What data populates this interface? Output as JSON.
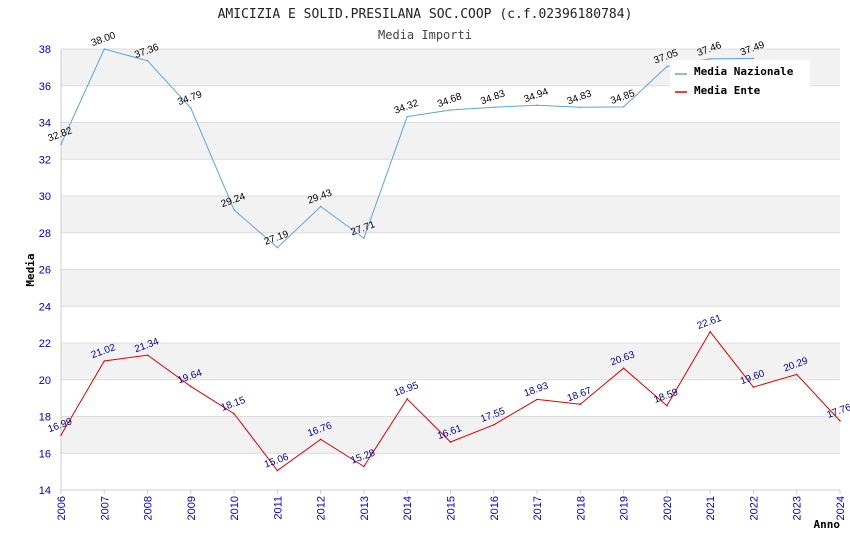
{
  "chart_data": {
    "type": "line",
    "title": "AMICIZIA E SOLID.PRESILANA SOC.COOP (c.f.02396180784)",
    "subtitle": "Media Importi",
    "xlabel": "Anno",
    "ylabel": "Media",
    "ylim": [
      14,
      38
    ],
    "yticks": [
      14,
      16,
      18,
      20,
      22,
      24,
      26,
      28,
      30,
      32,
      34,
      36,
      38
    ],
    "x": [
      "2006",
      "2007",
      "2008",
      "2009",
      "2010",
      "2011",
      "2012",
      "2013",
      "2014",
      "2015",
      "2016",
      "2017",
      "2018",
      "2019",
      "2020",
      "2021",
      "2022",
      "2023",
      "2024"
    ],
    "grid": "horizontal, alternating bands",
    "legend_position": "top-right",
    "series": [
      {
        "name": "Media Nazionale",
        "color": "#5aa5e0",
        "values": [
          32.82,
          38.0,
          37.36,
          34.79,
          29.24,
          27.19,
          29.43,
          27.71,
          34.32,
          34.68,
          34.83,
          34.94,
          34.83,
          34.85,
          37.05,
          37.46,
          37.49,
          null,
          null
        ],
        "labels": [
          "32.82",
          "38.00",
          "37.36",
          "34.79",
          "29.24",
          "27.19",
          "29.43",
          "27.71",
          "34.32",
          "34.68",
          "34.83",
          "34.94",
          "34.83",
          "34.85",
          "37.05",
          "37.46",
          "37.49",
          null,
          null
        ]
      },
      {
        "name": "Media Ente",
        "color": "#e00000",
        "values": [
          16.99,
          21.02,
          21.34,
          19.64,
          18.15,
          15.06,
          16.76,
          15.28,
          18.95,
          16.61,
          17.55,
          18.93,
          18.67,
          20.63,
          18.59,
          22.61,
          19.6,
          20.29,
          17.76
        ],
        "labels": [
          "16.99",
          "21.02",
          "21.34",
          "19.64",
          "18.15",
          "15.06",
          "16.76",
          "15.28",
          "18.95",
          "16.61",
          "17.55",
          "18.93",
          "18.67",
          "20.63",
          "18.59",
          "22.61",
          "19.60",
          "20.29",
          "17.76"
        ]
      }
    ]
  }
}
